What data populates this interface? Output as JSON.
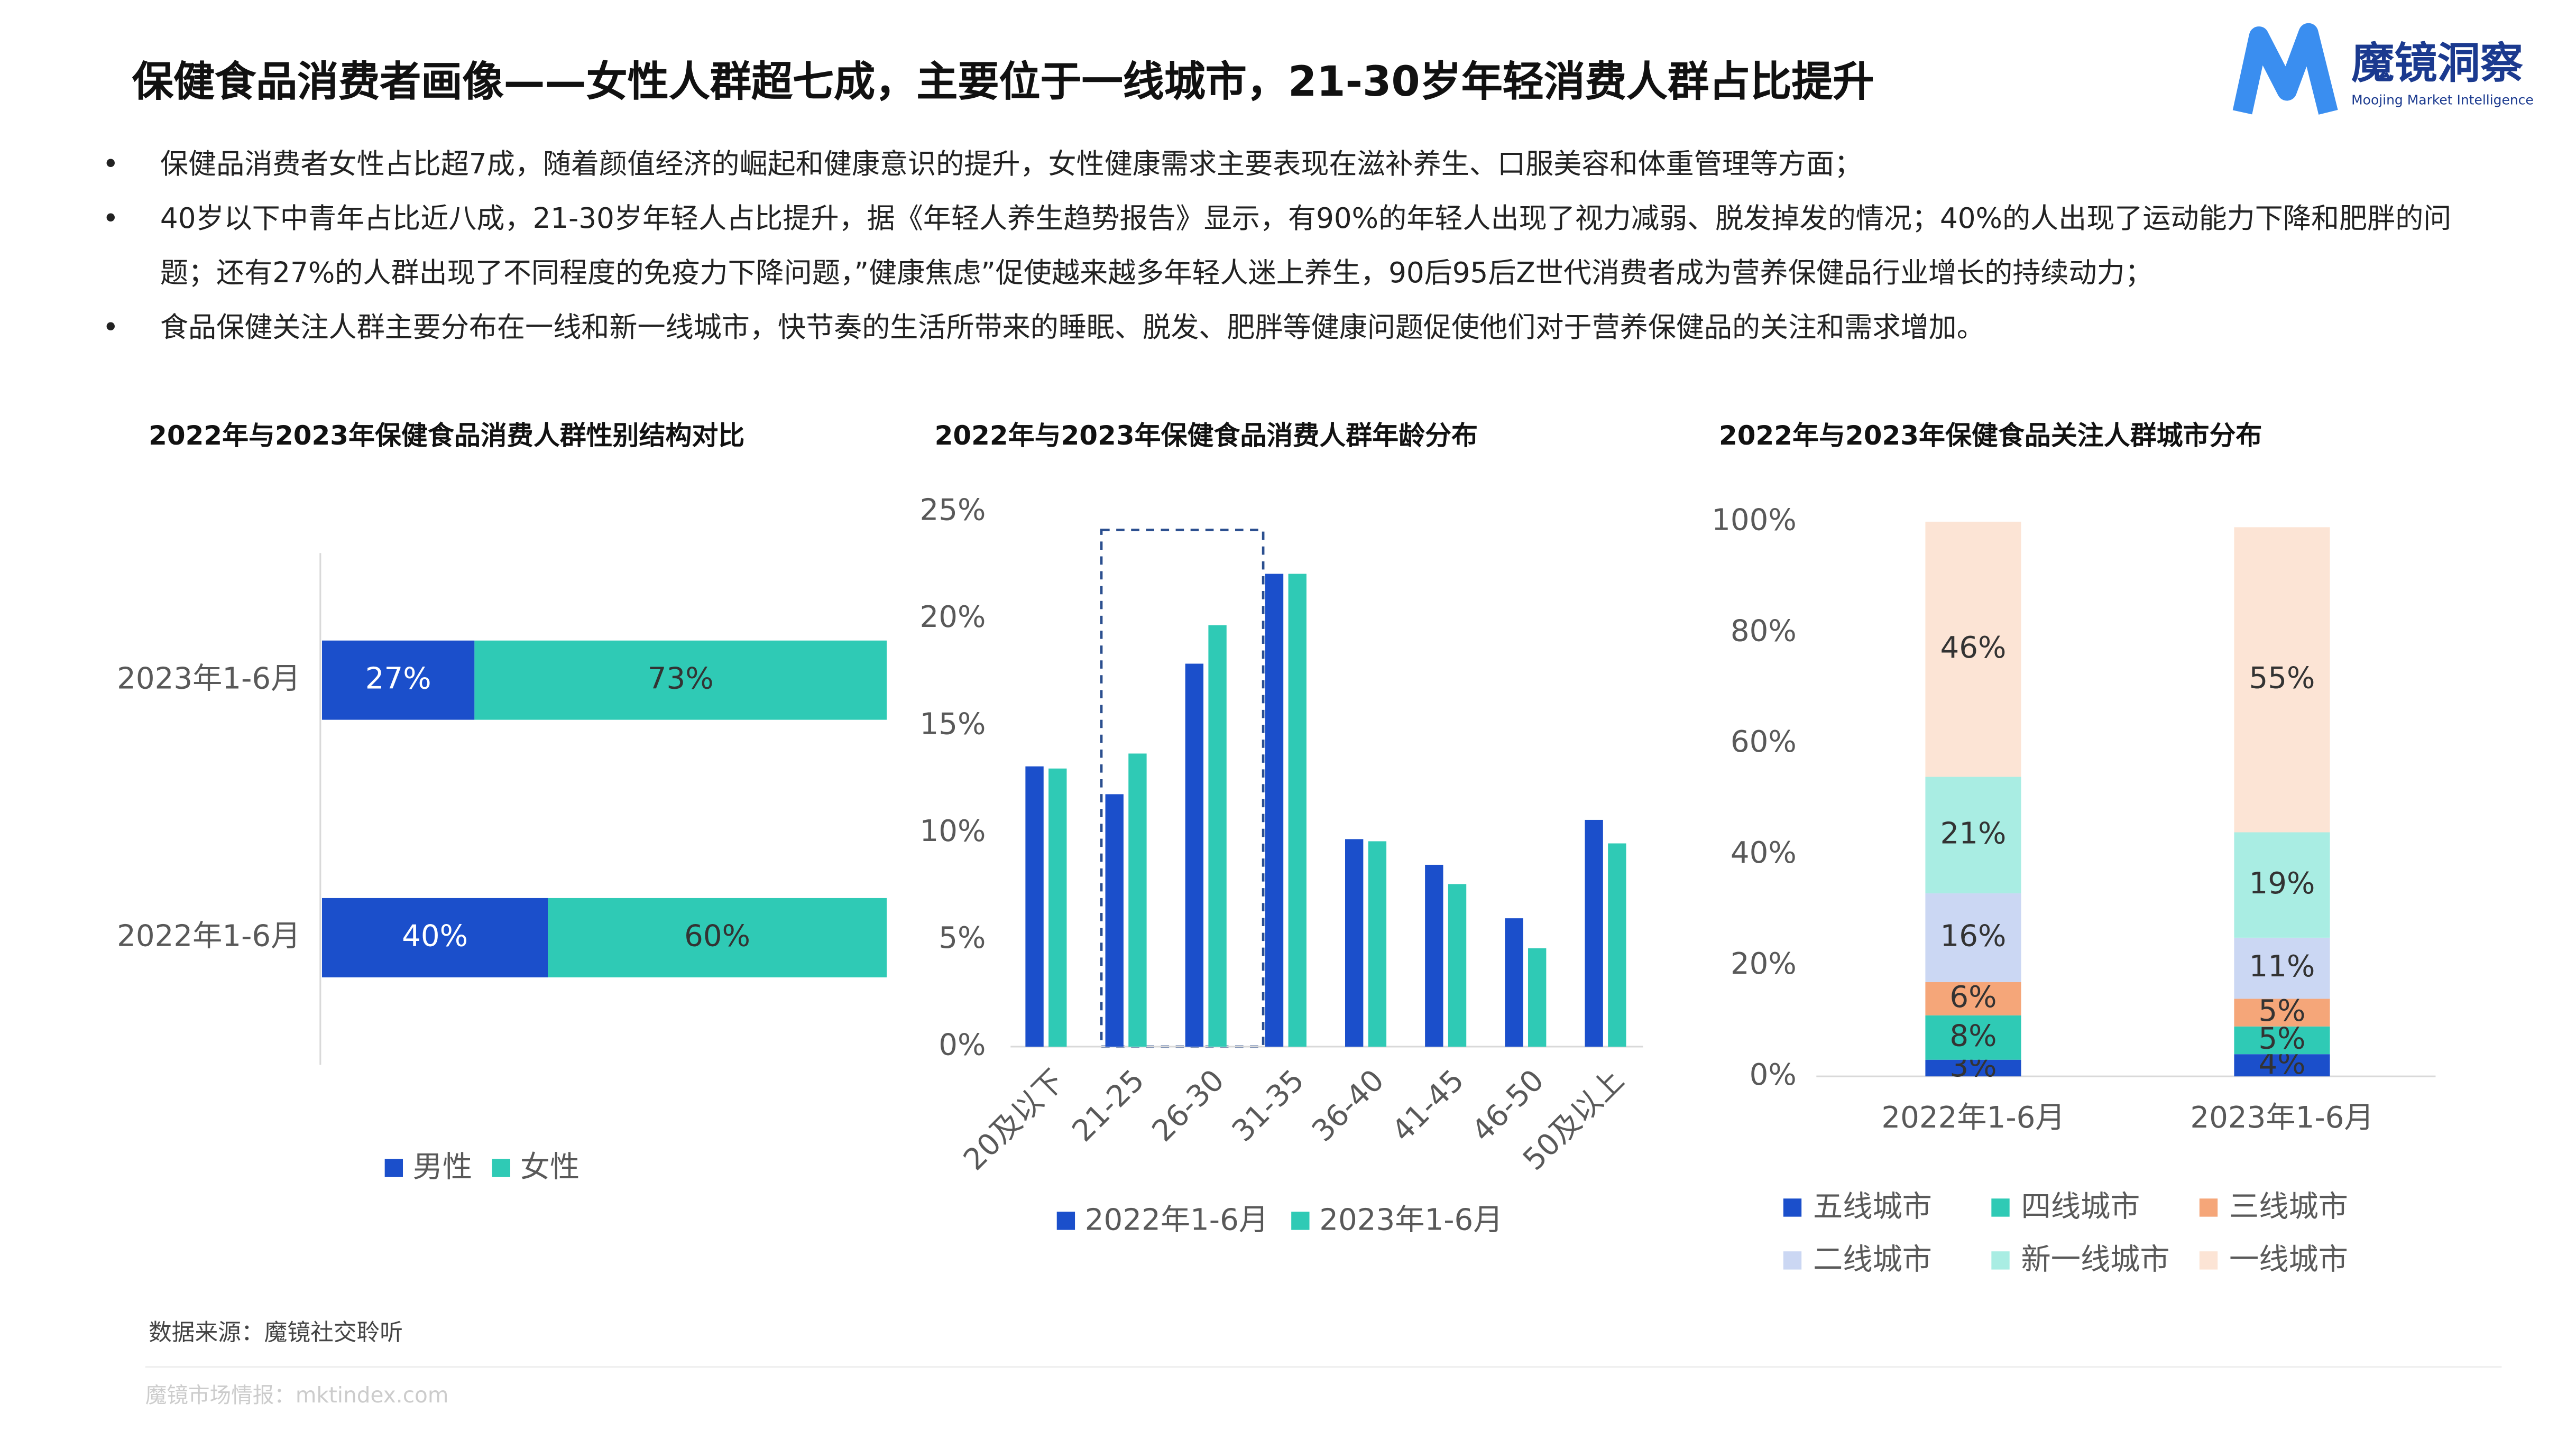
{
  "header": {
    "title": "保健食品消费者画像——女性人群超七成，主要位于一线城市，21-30岁年轻消费人群占比提升",
    "logo": "魔镜洞察",
    "logo_sub": "Moojing Market Intelligence"
  },
  "bullets": [
    "保健品消费者女性占比超7成，随着颜值经济的崛起和健康意识的提升，女性健康需求主要表现在滋补养生、口服美容和体重管理等方面；",
    "40岁以下中青年占比近八成，21-30岁年轻人占比提升，据《年轻人养生趋势报告》显示，有90%的年轻人出现了视力减弱、脱发掉发的情况；40%的人出现了运动能力下降和肥胖的问题；还有27%的人群出现了不同程度的免疫力下降问题，”健康焦虑”促使越来越多年轻人迷上养生，90后95后Z世代消费者成为营养保健品行业增长的持续动力；",
    "食品保健关注人群主要分布在一线和新一线城市，快节奏的生活所带来的睡眠、脱发、肥胖等健康问题促使他们对于营养保健品的关注和需求增加。"
  ],
  "chart_data": [
    {
      "type": "hbar-stacked",
      "title": "2022年与2023年保健食品消费人群性别结构对比",
      "categories": [
        "2023年1-6月",
        "2022年1-6月"
      ],
      "xlim": [
        0,
        100
      ],
      "series": [
        {
          "name": "男性",
          "color": "#1b4fcb",
          "values": [
            27,
            40
          ],
          "value_labels": [
            "27%",
            "40%"
          ]
        },
        {
          "name": "女性",
          "color": "#2fcab5",
          "values": [
            73,
            60
          ],
          "value_labels": [
            "73%",
            "60%"
          ]
        }
      ]
    },
    {
      "type": "grouped-bar",
      "title": "2022年与2023年保健食品消费人群年龄分布",
      "categories": [
        "20及以下",
        "21-25",
        "26-30",
        "31-35",
        "36-40",
        "41-45",
        "46-50",
        "50及以上"
      ],
      "ylim": [
        0,
        25
      ],
      "yticks": [
        {
          "value": 0,
          "label": "0%"
        },
        {
          "value": 5,
          "label": "5%"
        },
        {
          "value": 10,
          "label": "10%"
        },
        {
          "value": 15,
          "label": "15%"
        },
        {
          "value": 20,
          "label": "20%"
        },
        {
          "value": 25,
          "label": "25%"
        }
      ],
      "series": [
        {
          "name": "2022年1-6月",
          "color": "#1b4fcb",
          "values": [
            13.1,
            11.8,
            17.9,
            22.1,
            9.7,
            8.5,
            6.0,
            10.6
          ]
        },
        {
          "name": "2023年1-6月",
          "color": "#2fcab5",
          "values": [
            13.0,
            13.7,
            19.7,
            22.1,
            9.6,
            7.6,
            4.6,
            9.5
          ]
        }
      ]
    },
    {
      "type": "stacked-column",
      "title": "2022年与2023年保健食品关注人群城市分布",
      "categories": [
        "2022年1-6月",
        "2023年1-6月"
      ],
      "ylim": [
        0,
        100
      ],
      "yticks": [
        {
          "value": 0,
          "label": "0%"
        },
        {
          "value": 20,
          "label": "20%"
        },
        {
          "value": 40,
          "label": "40%"
        },
        {
          "value": 60,
          "label": "60%"
        },
        {
          "value": 80,
          "label": "80%"
        },
        {
          "value": 100,
          "label": "100%"
        }
      ],
      "series": [
        {
          "name": "五线城市",
          "color": "#1b4fcb",
          "values": [
            3,
            4
          ],
          "value_labels": [
            "3%",
            "4%"
          ]
        },
        {
          "name": "四线城市",
          "color": "#2fcab5",
          "values": [
            8,
            5
          ],
          "value_labels": [
            "8%",
            "5%"
          ]
        },
        {
          "name": "三线城市",
          "color": "#f5a679",
          "values": [
            6,
            5
          ],
          "value_labels": [
            "6%",
            "5%"
          ]
        },
        {
          "name": "二线城市",
          "color": "#cbd7f3",
          "values": [
            16,
            11
          ],
          "value_labels": [
            "16%",
            "11%"
          ]
        },
        {
          "name": "新一线城市",
          "color": "#a9ede3",
          "values": [
            21,
            19
          ],
          "value_labels": [
            "21%",
            "19%"
          ]
        },
        {
          "name": "一线城市",
          "color": "#fce4d5",
          "values": [
            46,
            55
          ],
          "value_labels": [
            "46%",
            "55%"
          ]
        }
      ]
    }
  ],
  "footer": {
    "source": "数据来源：魔镜社交聆听",
    "site": "魔镜市场情报：mktindex.com"
  }
}
